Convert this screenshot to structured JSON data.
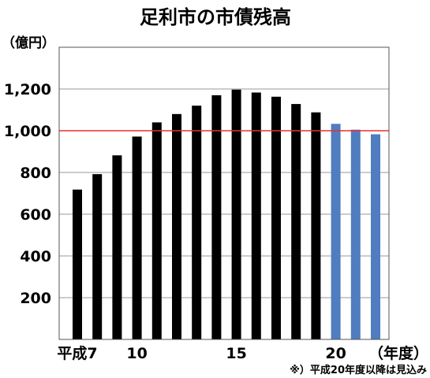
{
  "chart_data": {
    "type": "bar",
    "title": "足利市の市債残高",
    "ylabel": "（億円）",
    "xlabel": "（年度）",
    "note": "※）平成20年度以降は見込み",
    "ylim": [
      0,
      1400
    ],
    "yticks": [
      200,
      400,
      600,
      800,
      1000,
      1200
    ],
    "ytick_labels": [
      "200",
      "400",
      "600",
      "800",
      "1,000",
      "1,200"
    ],
    "categories": [
      "7",
      "8",
      "9",
      "10",
      "11",
      "12",
      "13",
      "14",
      "15",
      "16",
      "17",
      "18",
      "19",
      "20",
      "21",
      "22"
    ],
    "x_tick_labels": [
      {
        "index": 0,
        "label": "平成7"
      },
      {
        "index": 3,
        "label": "10"
      },
      {
        "index": 8,
        "label": "15"
      },
      {
        "index": 13,
        "label": "20"
      }
    ],
    "series": [
      {
        "name": "",
        "values": [
          718,
          792,
          882,
          972,
          1040,
          1080,
          1120,
          1170,
          1197,
          1183,
          1163,
          1128,
          1088,
          1033,
          1005,
          983
        ],
        "projected_from_index": 13
      }
    ],
    "reference_line": {
      "value": 1000,
      "color": "#e83030"
    },
    "grid": true,
    "colors": {
      "actual": "#000000",
      "projected": "#4f7dbf",
      "grid": "#9a9a9a",
      "frame": "#555555"
    }
  }
}
